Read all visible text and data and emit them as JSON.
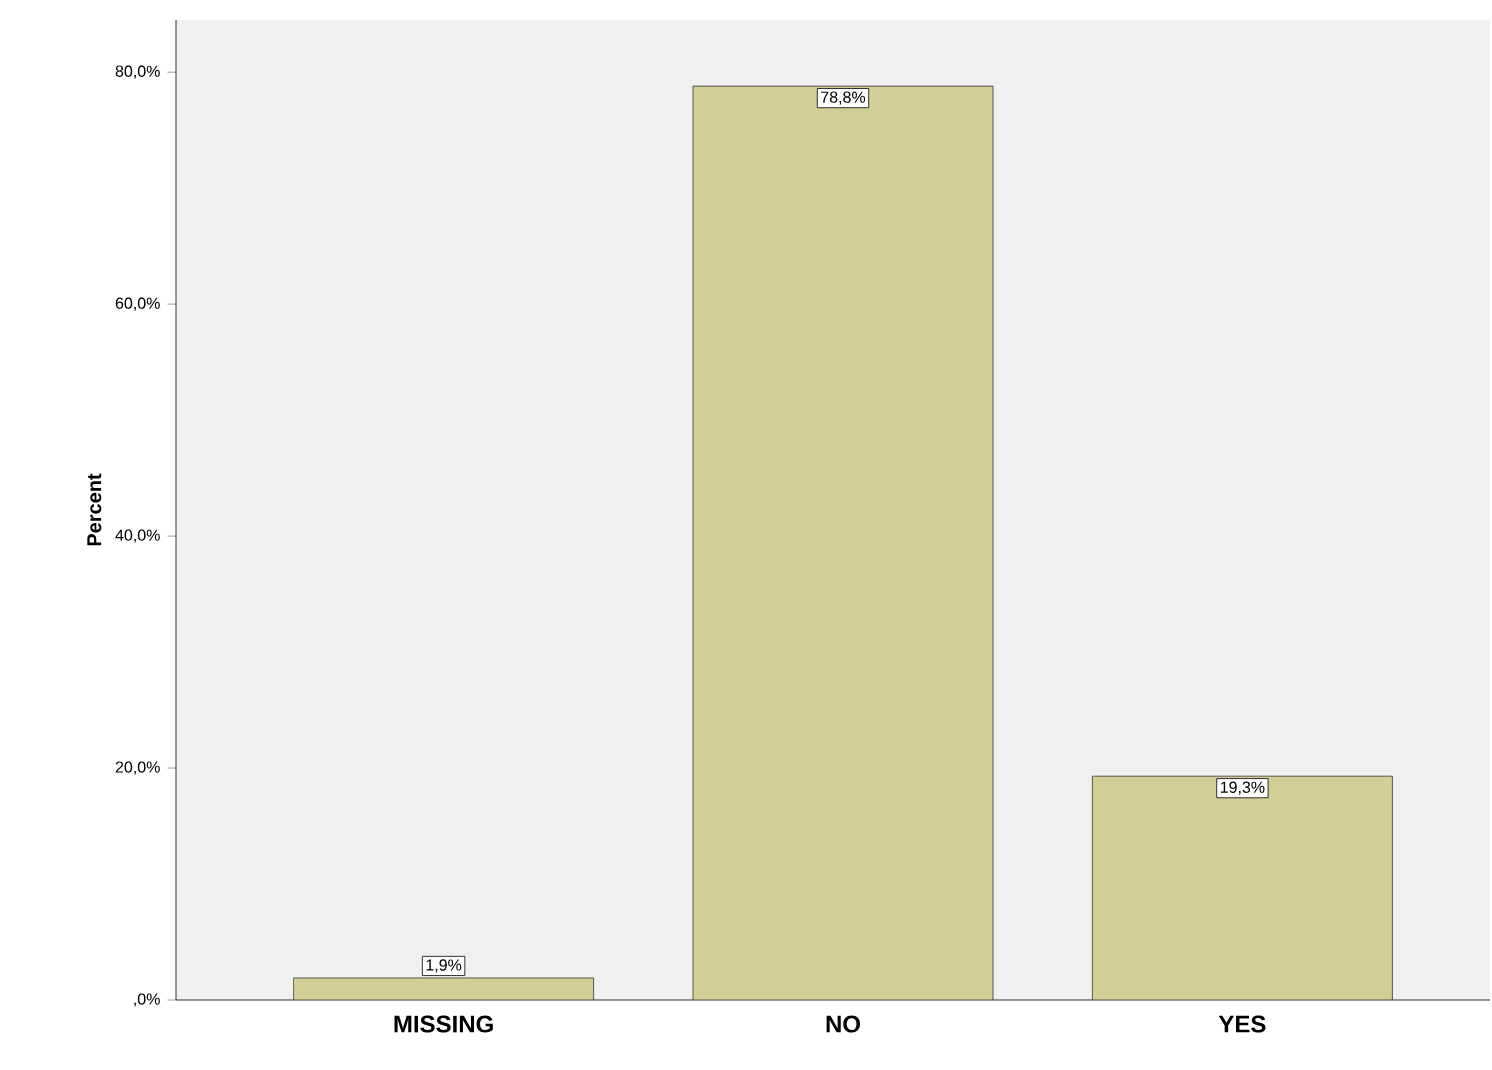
{
  "chart_data": {
    "type": "bar",
    "ylabel": "Percent",
    "categories": [
      "MISSING",
      "NO",
      "YES"
    ],
    "values": [
      1.9,
      78.8,
      19.3
    ],
    "value_labels": [
      "1,9%",
      "78,8%",
      "19,3%"
    ],
    "color": "#d3cd96",
    "ylim": [
      0,
      84.5
    ],
    "yticks": [
      {
        "value": 0,
        "label": ",0%"
      },
      {
        "value": 20,
        "label": "20,0%"
      },
      {
        "value": 40,
        "label": "40,0%"
      },
      {
        "value": 60,
        "label": "60,0%"
      },
      {
        "value": 80,
        "label": "80,0%"
      }
    ],
    "grid": false
  }
}
